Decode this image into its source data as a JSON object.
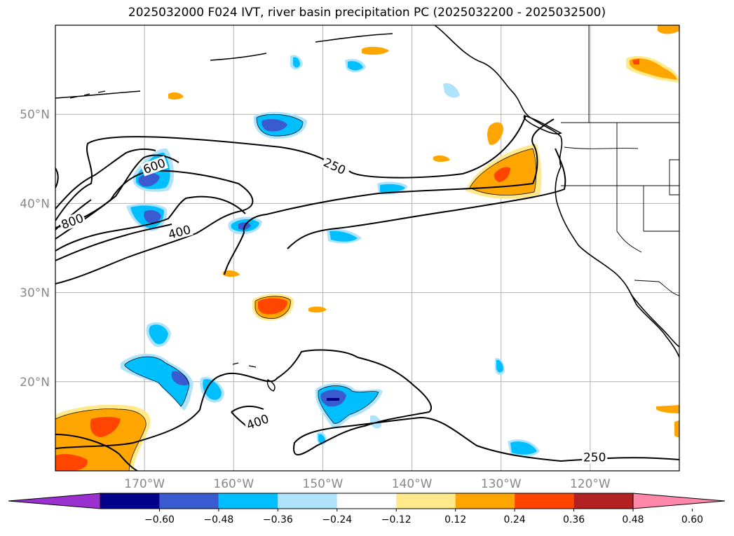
{
  "title": "2025032000 F024 IVT, river basin precipitation PC (2025032200 - 2025032500)",
  "map": {
    "lon_range": [
      -180,
      -110
    ],
    "lat_range": [
      10,
      60
    ],
    "lat_ticks": [
      {
        "lat": 50,
        "label": "50°N"
      },
      {
        "lat": 40,
        "label": "40°N"
      },
      {
        "lat": 30,
        "label": "30°N"
      },
      {
        "lat": 20,
        "label": "20°N"
      }
    ],
    "lon_ticks": [
      {
        "lon": -170,
        "label": "170°W"
      },
      {
        "lon": -160,
        "label": "160°W"
      },
      {
        "lon": -150,
        "label": "150°W"
      },
      {
        "lon": -140,
        "label": "140°W"
      },
      {
        "lon": -130,
        "label": "130°W"
      },
      {
        "lon": -120,
        "label": "120°W"
      }
    ],
    "grid": true,
    "contour_labels": [
      {
        "text": "600",
        "lon": -168.8,
        "lat": 43.9,
        "rotate": -20
      },
      {
        "text": "800",
        "lon": -178.0,
        "lat": 37.7,
        "rotate": -20
      },
      {
        "text": "400",
        "lon": -166.0,
        "lat": 36.5,
        "rotate": -15
      },
      {
        "text": "250",
        "lon": -148.8,
        "lat": 43.9,
        "rotate": 25
      },
      {
        "text": "400",
        "lon": -157.2,
        "lat": 15.2,
        "rotate": -20
      },
      {
        "text": "250",
        "lon": -119.5,
        "lat": 11.2,
        "rotate": 0
      }
    ]
  },
  "colorbar": {
    "tick_labels": [
      "−0.60",
      "−0.48",
      "−0.36",
      "−0.24",
      "−0.12",
      "0.12",
      "0.24",
      "0.36",
      "0.48",
      "0.60"
    ],
    "colors": [
      "#9b30d0",
      "#00008b",
      "#3a5bd0",
      "#00bfff",
      "#aee3fb",
      "#ffffff",
      "#ffe98a",
      "#ffa500",
      "#ff4500",
      "#b22222",
      "#ff88aa"
    ]
  }
}
